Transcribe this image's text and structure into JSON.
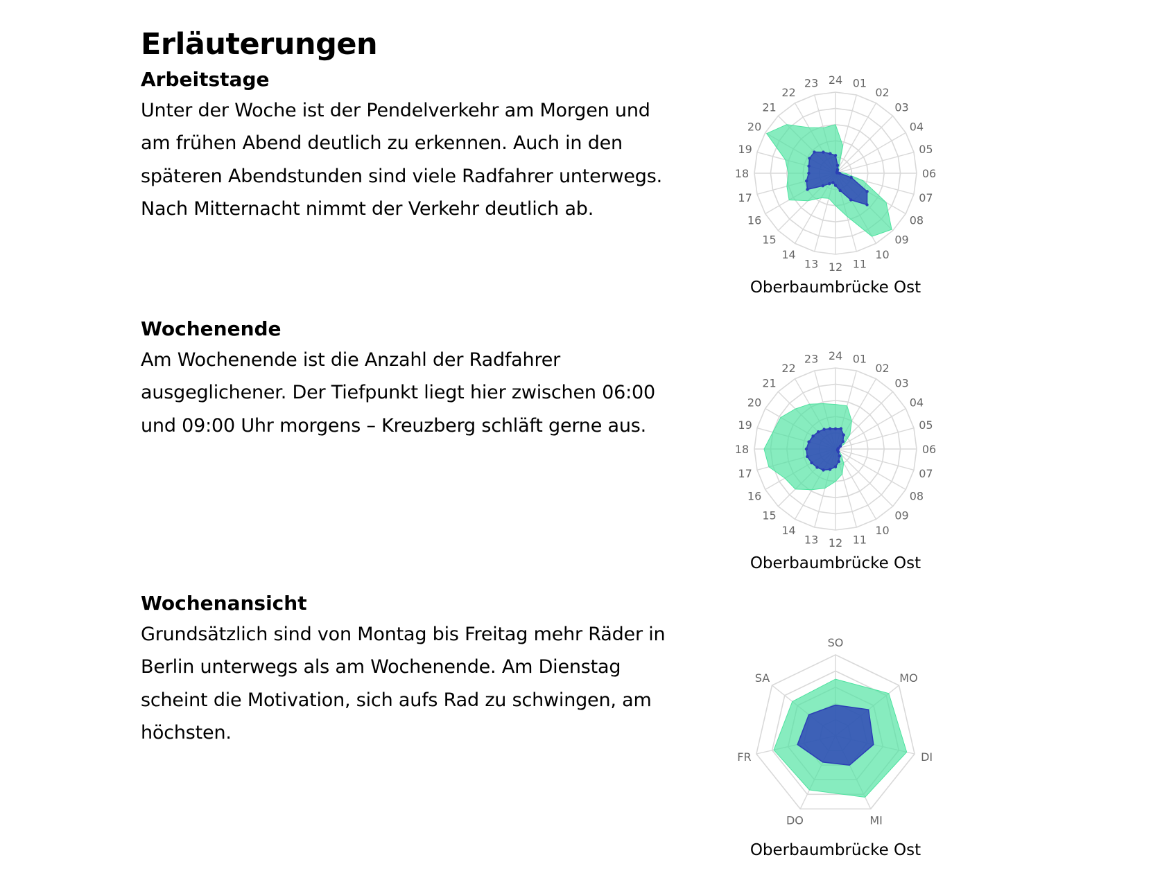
{
  "title": "Erläuterungen",
  "sections": [
    {
      "heading": "Arbeitstage",
      "text": "Unter der Woche ist der Pendelverkehr am Morgen und am frühen Abend deutlich zu erkennen. Auch in den späteren Abendstunden sind viele Radfahrer unterwegs. Nach Mitternacht nimmt der Verkehr deutlich ab."
    },
    {
      "heading": "Wochenende",
      "text": "Am Wochenende ist die Anzahl der Radfahrer ausgeglichener. Der Tiefpunkt liegt hier zwischen 06:00 und 09:00 Uhr morgens – Kreuzberg schläft gerne aus."
    },
    {
      "heading": "Wochenansicht",
      "text": "Grundsätzlich sind von Montag bis Freitag mehr Räder in Berlin unterwegs als am Wochenende. Am Dienstag scheint die Motivation, sich aufs Rad zu schwingen, am höchsten."
    }
  ],
  "colors": {
    "outer_series": "#4ee3a0",
    "inner_series": "#2b3fb5",
    "grid": "#d9d9d9",
    "axis_label": "#666666"
  },
  "chart_data": [
    {
      "type": "radar",
      "caption": "Oberbaumbrücke Ost",
      "categories": [
        "24",
        "01",
        "02",
        "03",
        "04",
        "05",
        "06",
        "07",
        "08",
        "09",
        "10",
        "11",
        "12",
        "13",
        "14",
        "15",
        "16",
        "17",
        "18",
        "19",
        "20",
        "21",
        "22",
        "23"
      ],
      "rmax": 1,
      "series": [
        {
          "values": [
            0.6,
            0.35,
            0.08,
            0.06,
            0.04,
            0.05,
            0.12,
            0.35,
            0.72,
            0.98,
            0.9,
            0.55,
            0.4,
            0.32,
            0.35,
            0.48,
            0.66,
            0.62,
            0.58,
            0.64,
            0.98,
            0.85,
            0.65,
            0.58
          ]
        },
        {
          "values": [
            0.22,
            0.1,
            0.05,
            0.03,
            0.02,
            0.02,
            0.05,
            0.2,
            0.45,
            0.55,
            0.38,
            0.22,
            0.15,
            0.12,
            0.15,
            0.22,
            0.4,
            0.37,
            0.33,
            0.34,
            0.37,
            0.37,
            0.3,
            0.25
          ]
        }
      ]
    },
    {
      "type": "radar",
      "caption": "Oberbaumbrücke Ost",
      "categories": [
        "24",
        "01",
        "02",
        "03",
        "04",
        "05",
        "06",
        "07",
        "08",
        "09",
        "10",
        "11",
        "12",
        "13",
        "14",
        "15",
        "16",
        "17",
        "18",
        "19",
        "20",
        "21",
        "22",
        "23"
      ],
      "rmax": 1,
      "series": [
        {
          "values": [
            0.55,
            0.55,
            0.4,
            0.25,
            0.12,
            0.04,
            0.04,
            0.04,
            0.05,
            0.1,
            0.2,
            0.32,
            0.4,
            0.5,
            0.58,
            0.7,
            0.72,
            0.85,
            0.88,
            0.8,
            0.78,
            0.7,
            0.64,
            0.58
          ]
        },
        {
          "values": [
            0.25,
            0.26,
            0.2,
            0.13,
            0.07,
            0.04,
            0.03,
            0.03,
            0.03,
            0.05,
            0.1,
            0.16,
            0.22,
            0.26,
            0.3,
            0.32,
            0.34,
            0.36,
            0.36,
            0.34,
            0.32,
            0.3,
            0.28,
            0.26
          ]
        }
      ]
    },
    {
      "type": "radar",
      "caption": "Oberbaumbrücke Ost",
      "categories": [
        "SO",
        "MO",
        "DI",
        "MI",
        "DO",
        "FR",
        "SA"
      ],
      "rmax": 1,
      "series": [
        {
          "values": [
            0.7,
            0.84,
            0.9,
            0.84,
            0.74,
            0.78,
            0.68
          ]
        },
        {
          "values": [
            0.38,
            0.52,
            0.48,
            0.4,
            0.36,
            0.48,
            0.42
          ]
        }
      ]
    }
  ]
}
